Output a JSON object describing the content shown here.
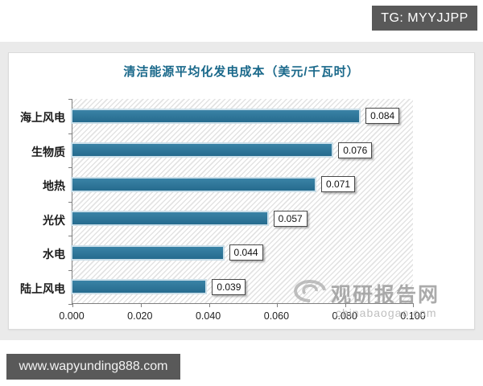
{
  "overlays": {
    "tg_badge": "TG: MYYJJPP",
    "footer_url": "www.wapyunding888.com",
    "watermark_brand": "观研报告网",
    "watermark_domain": "chinabaogao.com"
  },
  "colors": {
    "bar": "#2b7396",
    "bar_glow": "#cbdfe9",
    "title": "#19688a",
    "badge_bg": "#595959",
    "page_band": "#eaeaea",
    "axis": "#808080"
  },
  "chart_data": {
    "type": "bar",
    "orientation": "horizontal",
    "title": "清洁能源平均化发电成本（美元/千瓦时）",
    "categories": [
      "海上风电",
      "生物质",
      "地热",
      "光伏",
      "水电",
      "陆上风电"
    ],
    "values": [
      0.084,
      0.076,
      0.071,
      0.057,
      0.044,
      0.039
    ],
    "value_labels": [
      "0.084",
      "0.076",
      "0.071",
      "0.057",
      "0.044",
      "0.039"
    ],
    "x_ticks": [
      "0.000",
      "0.020",
      "0.040",
      "0.060",
      "0.080",
      "0.100"
    ],
    "xlim": [
      0,
      0.1
    ],
    "xlabel": "",
    "ylabel": "",
    "grid": false,
    "legend": "none",
    "plot_background": "diagonal-hatch"
  }
}
